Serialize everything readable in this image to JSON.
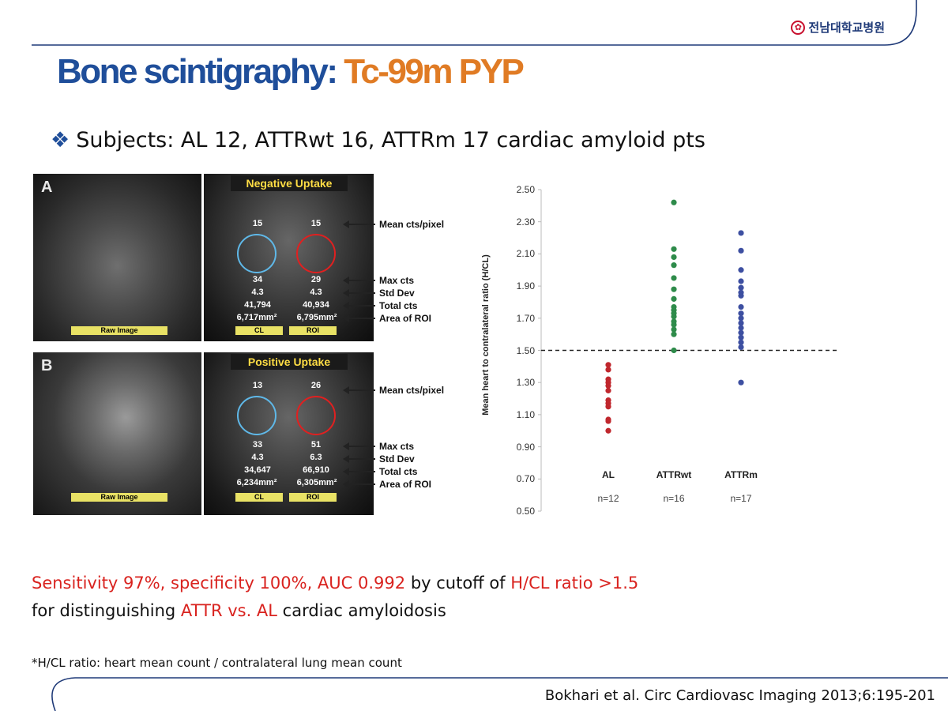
{
  "logo": {
    "mark": "✿",
    "text": "전남대학교병원"
  },
  "title": {
    "part1": "Bone scintigraphy: ",
    "part2": "Tc-99m PYP"
  },
  "subjects": {
    "bullet": "❖",
    "text": "Subjects: AL 12, ATTRwt 16, ATTRm 17 cardiac amyloid pts"
  },
  "scans": {
    "A": {
      "letter": "A",
      "header": "Negative Uptake",
      "raw_label": "Raw Image",
      "cl_label": "CL",
      "roi_label": "ROI",
      "mean_cl": "15",
      "mean_roi": "15",
      "cl": [
        "34",
        "4.3",
        "41,794",
        "6,717mm²"
      ],
      "roi": [
        "29",
        "4.3",
        "40,934",
        "6,795mm²"
      ]
    },
    "B": {
      "letter": "B",
      "header": "Positive Uptake",
      "raw_label": "Raw Image",
      "cl_label": "CL",
      "roi_label": "ROI",
      "mean_cl": "13",
      "mean_roi": "26",
      "cl": [
        "33",
        "4.3",
        "34,647",
        "6,234mm²"
      ],
      "roi": [
        "51",
        "6.3",
        "66,910",
        "6,305mm²"
      ]
    },
    "annotations": {
      "mean": "Mean cts/pixel",
      "max": "Max cts",
      "std": "Std Dev",
      "total": "Total cts",
      "area": "Area of ROI"
    }
  },
  "chart_data": {
    "type": "scatter",
    "ylabel": "Mean heart to contralateral ratio (H/CL)",
    "ylim": [
      0.5,
      2.5
    ],
    "yticks": [
      "0.50",
      "0.70",
      "0.90",
      "1.10",
      "1.30",
      "1.50",
      "1.70",
      "1.90",
      "2.10",
      "2.30",
      "2.50"
    ],
    "cutoff": 1.5,
    "categories": [
      "AL",
      "ATTRwt",
      "ATTRm"
    ],
    "n_labels": [
      "n=12",
      "n=16",
      "n=17"
    ],
    "series": [
      {
        "name": "AL",
        "color": "#c0272d",
        "values": [
          1.41,
          1.38,
          1.32,
          1.3,
          1.28,
          1.25,
          1.19,
          1.17,
          1.15,
          1.07,
          1.06,
          1.0
        ]
      },
      {
        "name": "ATTRwt",
        "color": "#2e8b4a",
        "values": [
          2.42,
          2.13,
          2.08,
          2.03,
          1.95,
          1.88,
          1.82,
          1.77,
          1.75,
          1.73,
          1.71,
          1.68,
          1.66,
          1.63,
          1.6,
          1.5
        ]
      },
      {
        "name": "ATTRm",
        "color": "#3d4fa1",
        "values": [
          2.23,
          2.12,
          2.0,
          1.93,
          1.89,
          1.86,
          1.84,
          1.77,
          1.73,
          1.7,
          1.67,
          1.64,
          1.61,
          1.58,
          1.55,
          1.52,
          1.3
        ]
      }
    ]
  },
  "summary": {
    "seg1": "Sensitivity 97%, specificity 100%, AUC 0.992",
    "seg2": " by cutoff of ",
    "seg3": "H/CL ratio >1.5",
    "seg4": "for distinguishing ",
    "seg5": "ATTR vs. AL",
    "seg6": " cardiac amyloidosis"
  },
  "footnote": "*H/CL ratio: heart mean count / contralateral lung mean count",
  "citation": "Bokhari et al. Circ Cardiovasc Imaging 2013;6:195-201",
  "colors": {
    "title_blue": "#1f4e9a",
    "title_orange": "#e07b24",
    "accent_red": "#d9231f",
    "curve_blue": "#1f3a78"
  }
}
